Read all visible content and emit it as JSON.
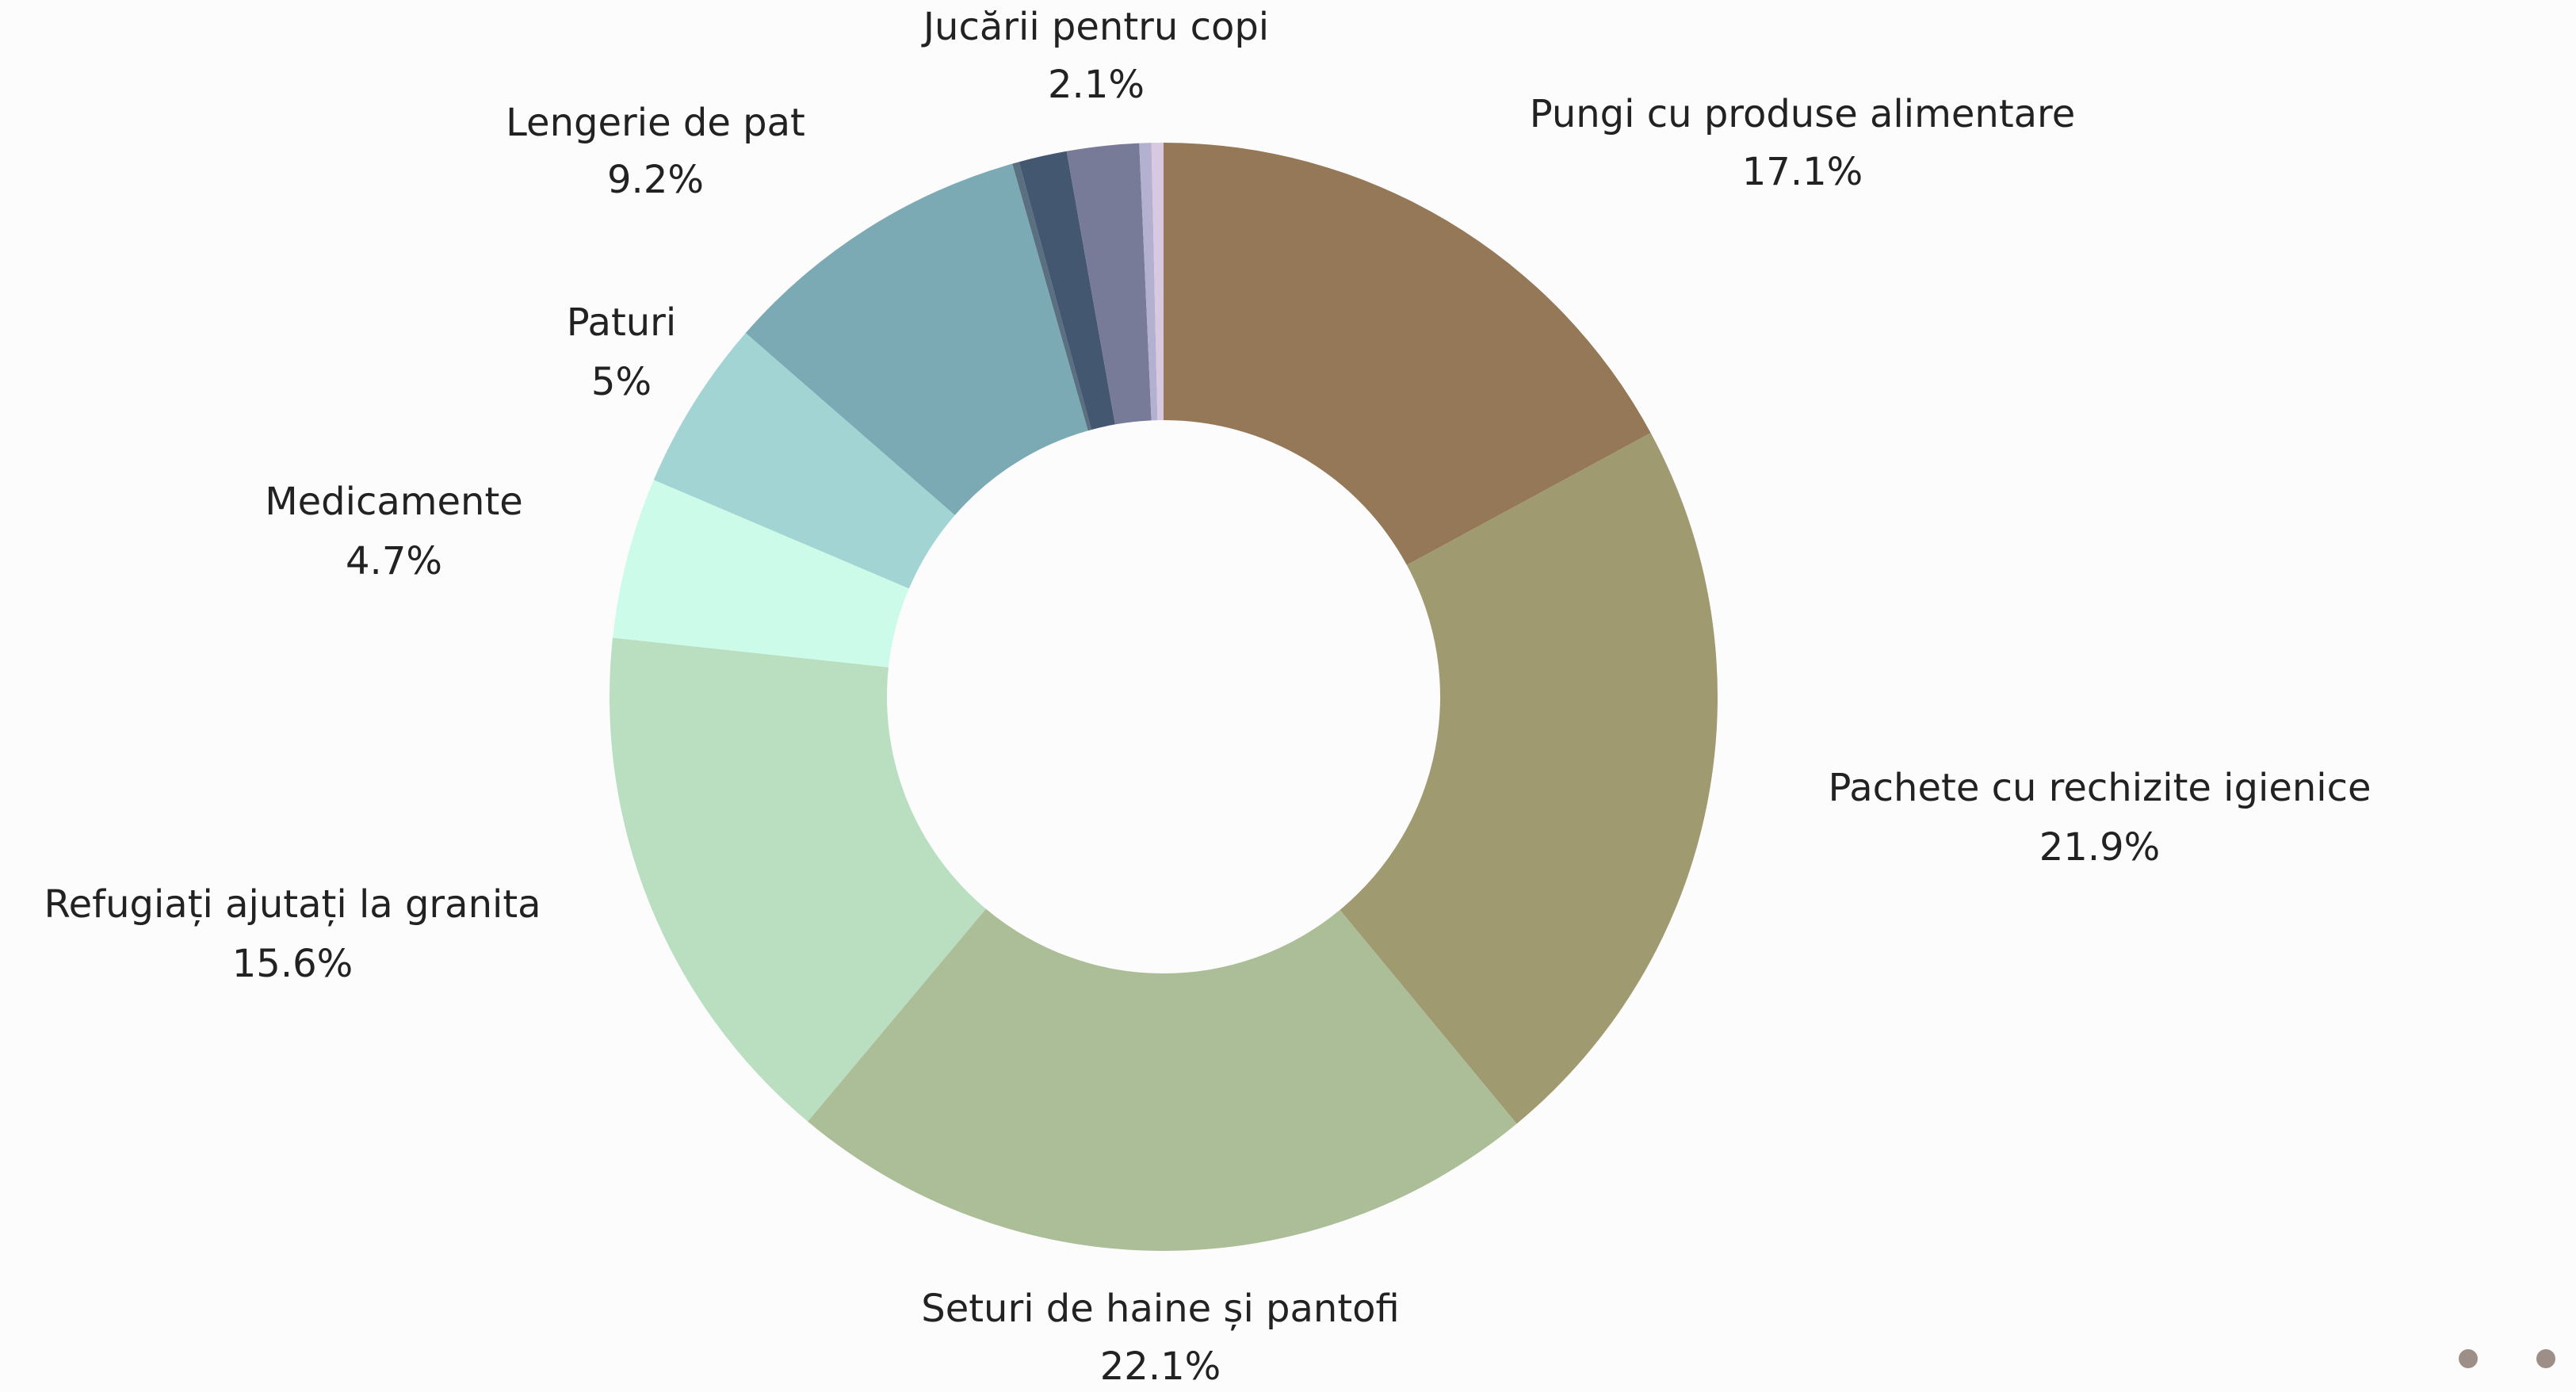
{
  "chart_data": {
    "type": "donut",
    "categories": [
      "Pungi cu produse alimentare",
      "Pachete cu rechizite igienice",
      "Seturi de haine și pantofi",
      "Refugiați ajutați la granita",
      "Medicamente",
      "Paturi",
      "Lengerie de pat",
      null,
      null,
      "Jucării pentru copi",
      null,
      null
    ],
    "values": [
      17.1,
      21.9,
      22.1,
      15.6,
      4.7,
      5,
      9.2,
      0.2,
      1.4,
      2.1,
      0.35,
      0.35
    ],
    "value_labels": [
      "17.1%",
      "21.9%",
      "22.1%",
      "15.6%",
      "4.7%",
      "5%",
      "9.2%",
      null,
      null,
      "2.1%",
      null,
      null
    ],
    "colors": [
      "#947857",
      "#a09a71",
      "#acbe97",
      "#badfc0",
      "#cdfbe9",
      "#a2d4d3",
      "#7ba9b4",
      "#5a7080",
      "#435771",
      "#777b98",
      "#b4b0cf",
      "#d8c8e0"
    ]
  }
}
